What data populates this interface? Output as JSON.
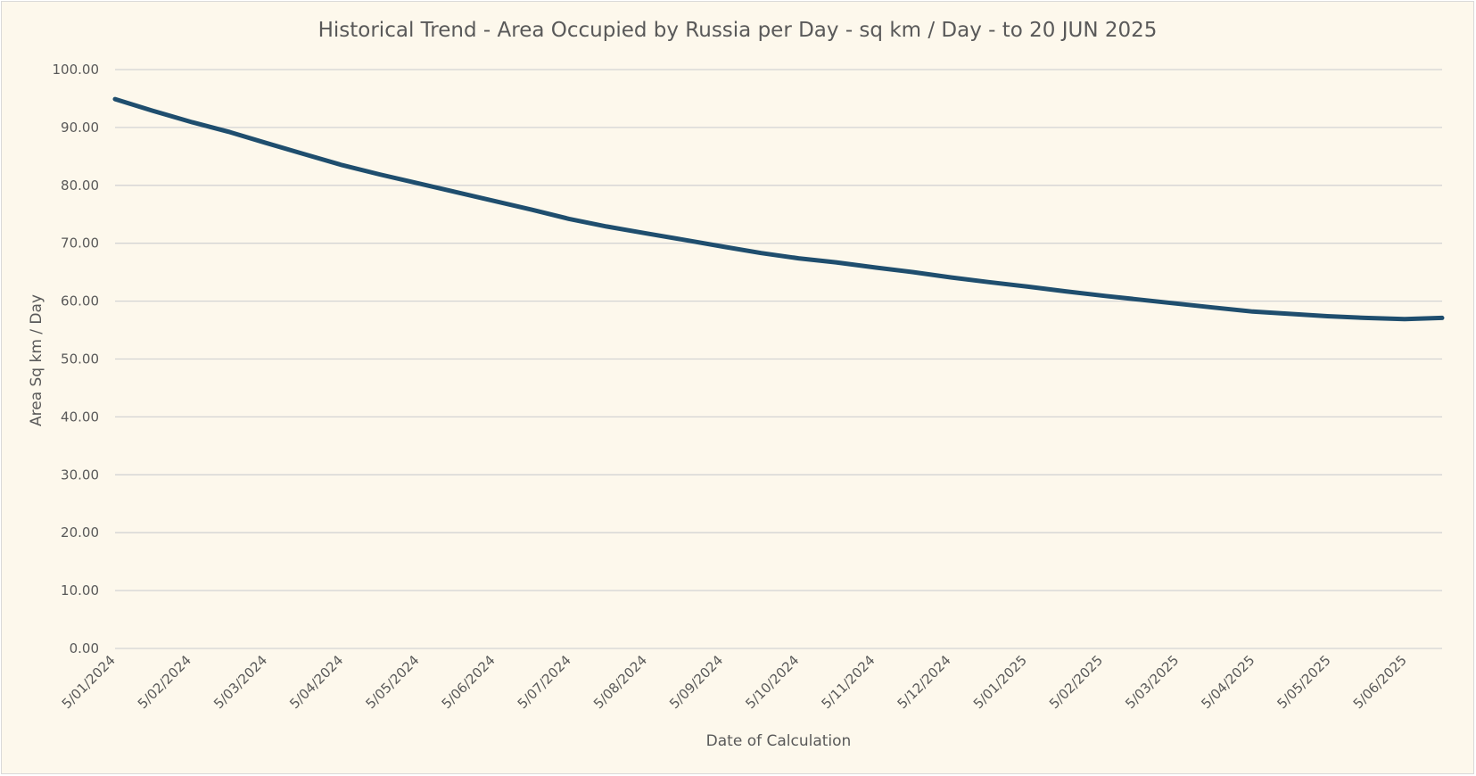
{
  "chart_data": {
    "type": "line",
    "title": "Historical Trend - Area Occupied by Russia per Day - sq km / Day - to 20 JUN 2025",
    "xlabel": "Date of Calculation",
    "ylabel": "Area Sq km / Day",
    "ylim": [
      0,
      100
    ],
    "y_ticks": [
      "0.00",
      "10.00",
      "20.00",
      "30.00",
      "40.00",
      "50.00",
      "60.00",
      "70.00",
      "80.00",
      "90.00",
      "100.00"
    ],
    "x_ticks": [
      "5/01/2024",
      "5/02/2024",
      "5/03/2024",
      "5/04/2024",
      "5/05/2024",
      "5/06/2024",
      "5/07/2024",
      "5/08/2024",
      "5/09/2024",
      "5/10/2024",
      "5/11/2024",
      "5/12/2024",
      "5/01/2025",
      "5/02/2025",
      "5/03/2025",
      "5/04/2025",
      "5/05/2025",
      "5/06/2025"
    ],
    "xlim": [
      "2024-01-05",
      "2025-06-20"
    ],
    "grid": true,
    "legend": "none",
    "series_color": "#1f4e6e",
    "series": [
      {
        "x": [
          "2024-01-05",
          "2024-01-20",
          "2024-02-05",
          "2024-02-20",
          "2024-03-05",
          "2024-03-20",
          "2024-04-05",
          "2024-04-20",
          "2024-05-05",
          "2024-05-20",
          "2024-06-05",
          "2024-06-20",
          "2024-07-05",
          "2024-07-20",
          "2024-08-05",
          "2024-08-20",
          "2024-09-05",
          "2024-09-20",
          "2024-10-05",
          "2024-10-20",
          "2024-11-05",
          "2024-11-20",
          "2024-12-05",
          "2024-12-20",
          "2025-01-05",
          "2025-01-20",
          "2025-02-05",
          "2025-02-20",
          "2025-03-05",
          "2025-03-20",
          "2025-04-05",
          "2025-04-20",
          "2025-05-05",
          "2025-05-20",
          "2025-06-05",
          "2025-06-20"
        ],
        "values": [
          94.9,
          92.9,
          90.9,
          89.2,
          87.4,
          85.5,
          83.5,
          81.9,
          80.4,
          78.9,
          77.3,
          75.8,
          74.2,
          72.9,
          71.7,
          70.6,
          69.4,
          68.3,
          67.4,
          66.7,
          65.8,
          65.0,
          64.1,
          63.3,
          62.5,
          61.7,
          60.9,
          60.2,
          59.6,
          58.9,
          58.2,
          57.8,
          57.4,
          57.1,
          56.9,
          57.1
        ]
      }
    ]
  }
}
